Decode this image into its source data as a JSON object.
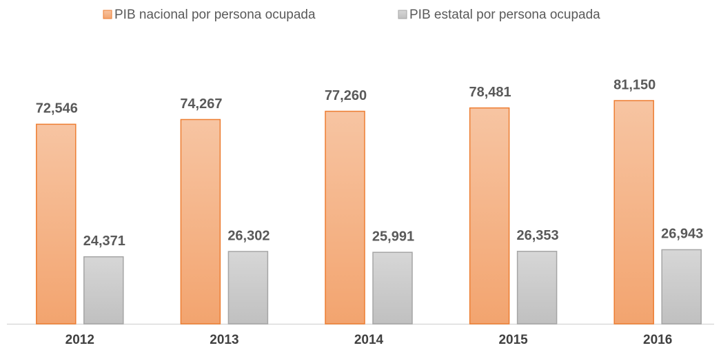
{
  "chart_data": {
    "type": "bar",
    "categories": [
      "2012",
      "2013",
      "2014",
      "2015",
      "2016"
    ],
    "series": [
      {
        "name": "PIB nacional por persona ocupada",
        "color": "#ed7d31",
        "values": [
          72546,
          74267,
          77260,
          78481,
          81150
        ],
        "value_labels": [
          "72,546",
          "74,267",
          "77,260",
          "78,481",
          "81,150"
        ]
      },
      {
        "name": "PIB estatal por persona ocupada",
        "color": "#a5a5a5",
        "values": [
          24371,
          26302,
          25991,
          26353,
          26943
        ],
        "value_labels": [
          "24,371",
          "26,302",
          "25,991",
          "26,353",
          "26,943"
        ]
      }
    ],
    "legend": "top"
  }
}
